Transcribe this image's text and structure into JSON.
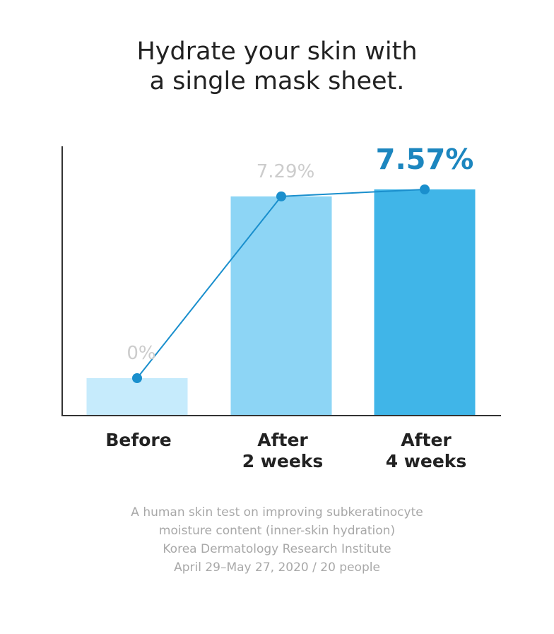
{
  "title": {
    "line1": "Hydrate your skin with",
    "line2": "a single mask sheet."
  },
  "chart_data": {
    "type": "bar",
    "categories": [
      [
        "Before"
      ],
      [
        "After",
        "2 weeks"
      ],
      [
        "After",
        "4 weeks"
      ]
    ],
    "values": [
      0,
      7.29,
      7.57
    ],
    "value_labels": [
      "0%",
      "7.29%",
      "7.57%"
    ],
    "overlay": "line",
    "highlight_index": 2,
    "bar_colors": [
      "#c6ebfc",
      "#8dd5f5",
      "#40b5e8"
    ],
    "label_colors": [
      "#cccccc",
      "#cccccc",
      "#1c86bf"
    ],
    "line_color": "#1a8fcd",
    "axis_color": "#333333",
    "grid": false,
    "legend": "none"
  },
  "caption": {
    "line1": "A human skin test on improving subkeratinocyte",
    "line2": "moisture content (inner-skin hydration)",
    "line3": "Korea Dermatology Research Institute",
    "line4": "April 29–May 27, 2020 / 20 people"
  }
}
